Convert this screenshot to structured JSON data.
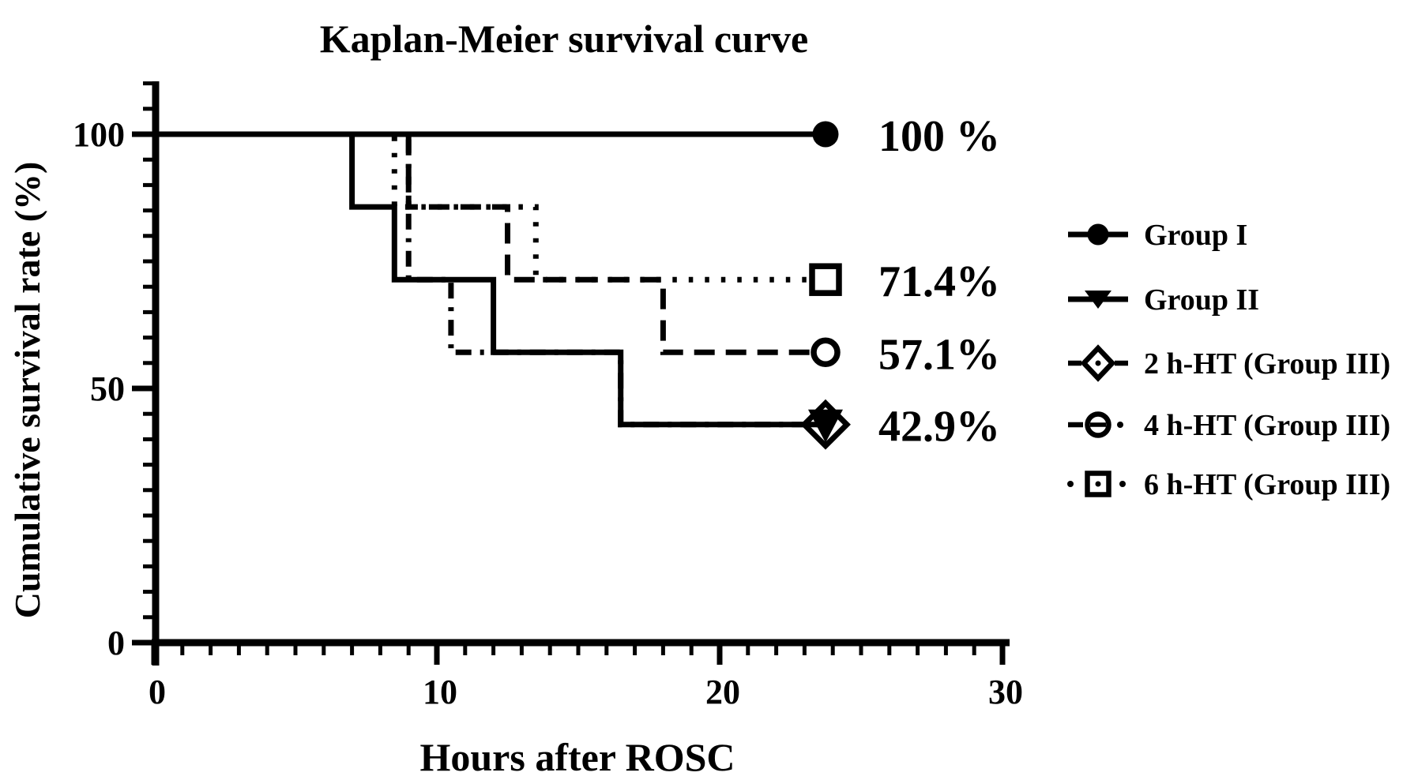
{
  "title": "Kaplan-Meier survival curve",
  "colors": {
    "ink": "#000000",
    "background": "#ffffff"
  },
  "chart_data": {
    "type": "line",
    "subtype": "kaplan-meier-step",
    "title": "Kaplan-Meier survival curve",
    "xlabel": "Hours after ROSC",
    "ylabel": "Cumulative survival rate (%)",
    "xlim": [
      0,
      30
    ],
    "ylim": [
      0,
      110
    ],
    "x_major_ticks": [
      0,
      10,
      20,
      30
    ],
    "x_minor_step": 1,
    "y_major_ticks": [
      0,
      50,
      100
    ],
    "y_minor_step": 5,
    "grid": "off",
    "end_time_h": 24,
    "series": [
      {
        "name": "Group I",
        "line_style": "solid",
        "marker": "filled-circle",
        "end_label": "100 %",
        "show_end_label": true,
        "final_survival_pct": 100,
        "points": [
          [
            0,
            100
          ],
          [
            24,
            100
          ]
        ]
      },
      {
        "name": "Group II",
        "line_style": "solid",
        "marker": "filled-triangle-down",
        "end_label": "42.9%",
        "show_end_label": true,
        "final_survival_pct": 42.9,
        "points": [
          [
            0,
            100
          ],
          [
            7,
            100
          ],
          [
            7,
            85.7
          ],
          [
            8.5,
            85.7
          ],
          [
            8.5,
            71.4
          ],
          [
            12,
            71.4
          ],
          [
            12,
            57.1
          ],
          [
            16.5,
            57.1
          ],
          [
            16.5,
            42.9
          ],
          [
            24,
            42.9
          ]
        ]
      },
      {
        "name": "2 h-HT (Group III)",
        "line_style": "dash-dot",
        "marker": "open-diamond",
        "end_label": "42.9%",
        "show_end_label": false,
        "final_survival_pct": 42.9,
        "points": [
          [
            0,
            100
          ],
          [
            9,
            100
          ],
          [
            9,
            71.4
          ],
          [
            10.5,
            71.4
          ],
          [
            10.5,
            57.1
          ],
          [
            16.5,
            57.1
          ],
          [
            16.5,
            42.9
          ],
          [
            24,
            42.9
          ]
        ]
      },
      {
        "name": "4 h-HT (Group III)",
        "line_style": "dashed",
        "marker": "open-circle",
        "end_label": "57.1%",
        "show_end_label": true,
        "final_survival_pct": 57.1,
        "points": [
          [
            0,
            100
          ],
          [
            9,
            100
          ],
          [
            9,
            85.7
          ],
          [
            12.5,
            85.7
          ],
          [
            12.5,
            71.4
          ],
          [
            18,
            71.4
          ],
          [
            18,
            57.1
          ],
          [
            24,
            57.1
          ]
        ]
      },
      {
        "name": "6 h-HT (Group III)",
        "line_style": "dotted",
        "marker": "open-square",
        "end_label": "71.4%",
        "show_end_label": true,
        "final_survival_pct": 71.4,
        "points": [
          [
            0,
            100
          ],
          [
            8.5,
            100
          ],
          [
            8.5,
            85.7
          ],
          [
            13.5,
            85.7
          ],
          [
            13.5,
            71.4
          ],
          [
            24,
            71.4
          ]
        ]
      }
    ],
    "legend": {
      "position": "right",
      "items": [
        "Group I",
        "Group II",
        "2 h-HT (Group III)",
        "4 h-HT (Group III)",
        "6 h-HT (Group III)"
      ]
    }
  }
}
